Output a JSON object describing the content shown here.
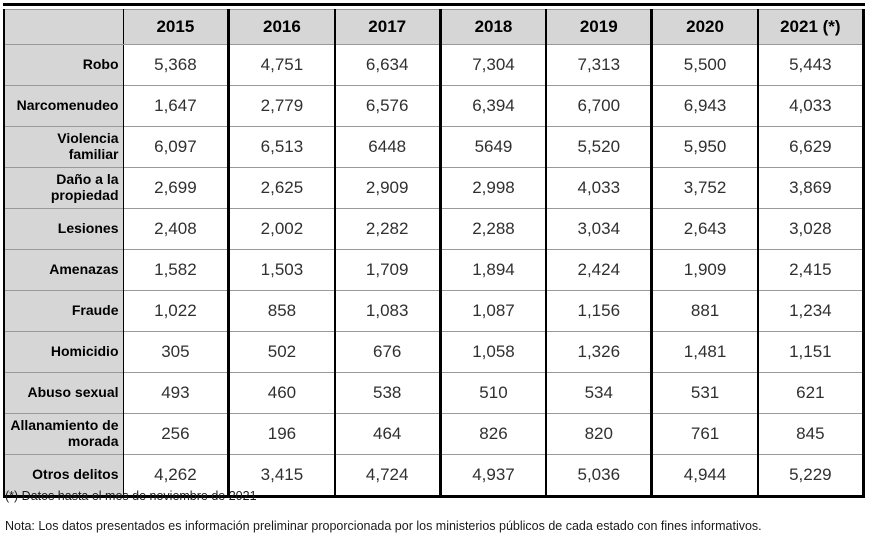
{
  "table": {
    "columns": [
      "2015",
      "2016",
      "2017",
      "2018",
      "2019",
      "2020",
      "2021 (*)"
    ],
    "rows": [
      {
        "label": "Robo",
        "values": [
          "5,368",
          "4,751",
          "6,634",
          "7,304",
          "7,313",
          "5,500",
          "5,443"
        ]
      },
      {
        "label": "Narcomenudeo",
        "values": [
          "1,647",
          "2,779",
          "6,576",
          "6,394",
          "6,700",
          "6,943",
          "4,033"
        ]
      },
      {
        "label": "Violencia familiar",
        "values": [
          "6,097",
          "6,513",
          "6448",
          "5649",
          "5,520",
          "5,950",
          "6,629"
        ]
      },
      {
        "label": "Daño a la propiedad",
        "values": [
          "2,699",
          "2,625",
          "2,909",
          "2,998",
          "4,033",
          "3,752",
          "3,869"
        ]
      },
      {
        "label": "Lesiones",
        "values": [
          "2,408",
          "2,002",
          "2,282",
          "2,288",
          "3,034",
          "2,643",
          "3,028"
        ]
      },
      {
        "label": "Amenazas",
        "values": [
          "1,582",
          "1,503",
          "1,709",
          "1,894",
          "2,424",
          "1,909",
          "2,415"
        ]
      },
      {
        "label": "Fraude",
        "values": [
          "1,022",
          "858",
          "1,083",
          "1,087",
          "1,156",
          "881",
          "1,234"
        ]
      },
      {
        "label": "Homicidio",
        "values": [
          "305",
          "502",
          "676",
          "1,058",
          "1,326",
          "1,481",
          "1,151"
        ]
      },
      {
        "label": "Abuso sexual",
        "values": [
          "493",
          "460",
          "538",
          "510",
          "534",
          "531",
          "621"
        ]
      },
      {
        "label": "Allanamiento de morada",
        "values": [
          "256",
          "196",
          "464",
          "826",
          "820",
          "761",
          "845"
        ]
      },
      {
        "label": "Otros delitos",
        "values": [
          "4,262",
          "3,415",
          "4,724",
          "4,937",
          "5,036",
          "4,944",
          "5,229"
        ]
      }
    ]
  },
  "notes": {
    "footnote": "(*) Datos hasta el mes de noviembre de 2021",
    "nota": "Nota: Los datos presentados es información preliminar proporcionada por los ministerios públicos de cada estado con fines informativos."
  },
  "colors": {
    "header_bg": "#d6d6d6",
    "label_bg": "#d6d6d6",
    "border": "#000000",
    "row_line": "#9a9a9a",
    "number_text": "#303030"
  },
  "chart_data": {
    "type": "table",
    "title": "",
    "categories": [
      "2015",
      "2016",
      "2017",
      "2018",
      "2019",
      "2020",
      "2021 (*)"
    ],
    "series": [
      {
        "name": "Robo",
        "values": [
          5368,
          4751,
          6634,
          7304,
          7313,
          5500,
          5443
        ]
      },
      {
        "name": "Narcomenudeo",
        "values": [
          1647,
          2779,
          6576,
          6394,
          6700,
          6943,
          4033
        ]
      },
      {
        "name": "Violencia familiar",
        "values": [
          6097,
          6513,
          6448,
          5649,
          5520,
          5950,
          6629
        ]
      },
      {
        "name": "Daño a la propiedad",
        "values": [
          2699,
          2625,
          2909,
          2998,
          4033,
          3752,
          3869
        ]
      },
      {
        "name": "Lesiones",
        "values": [
          2408,
          2002,
          2282,
          2288,
          3034,
          2643,
          3028
        ]
      },
      {
        "name": "Amenazas",
        "values": [
          1582,
          1503,
          1709,
          1894,
          2424,
          1909,
          2415
        ]
      },
      {
        "name": "Fraude",
        "values": [
          1022,
          858,
          1083,
          1087,
          1156,
          881,
          1234
        ]
      },
      {
        "name": "Homicidio",
        "values": [
          305,
          502,
          676,
          1058,
          1326,
          1481,
          1151
        ]
      },
      {
        "name": "Abuso sexual",
        "values": [
          493,
          460,
          538,
          510,
          534,
          531,
          621
        ]
      },
      {
        "name": "Allanamiento de morada",
        "values": [
          256,
          196,
          464,
          826,
          820,
          761,
          845
        ]
      },
      {
        "name": "Otros delitos",
        "values": [
          4262,
          3415,
          4724,
          4937,
          5036,
          4944,
          5229
        ]
      }
    ],
    "footnotes": [
      "(*) Datos hasta el mes de noviembre de 2021",
      "Nota: Los datos presentados es información preliminar proporcionada por los ministerios públicos de cada estado con fines informativos."
    ]
  }
}
